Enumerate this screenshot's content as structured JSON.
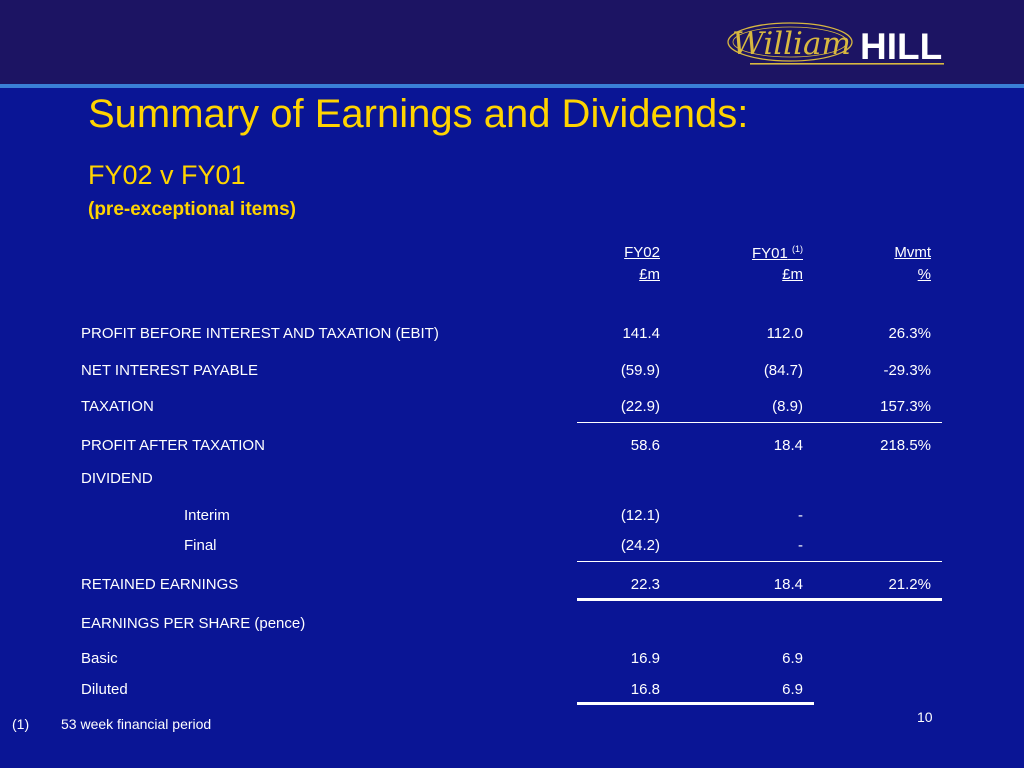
{
  "logo": {
    "script_text": "William",
    "block_text": "HILL"
  },
  "title": "Summary of Earnings and Dividends:",
  "subtitle": "FY02 v FY01",
  "note": "(pre-exceptional items)",
  "columns": [
    {
      "label": "FY02",
      "ref": "",
      "unit": "£m"
    },
    {
      "label": "FY01",
      "ref": "(1)",
      "unit": "£m"
    },
    {
      "label": "Mvmt",
      "ref": "",
      "unit": "%"
    }
  ],
  "rows": {
    "ebit": {
      "label": "PROFIT BEFORE INTEREST AND TAXATION (EBIT)",
      "fy02": "141.4",
      "fy01": "112.0",
      "mvmt": "26.3%"
    },
    "interest": {
      "label": "NET INTEREST PAYABLE",
      "fy02": "(59.9)",
      "fy01": "(84.7)",
      "mvmt": "-29.3%"
    },
    "tax": {
      "label": "TAXATION",
      "fy02": "(22.9)",
      "fy01": "(8.9)",
      "mvmt": "157.3%"
    },
    "pat": {
      "label": "PROFIT AFTER TAXATION",
      "fy02": "58.6",
      "fy01": "18.4",
      "mvmt": "218.5%"
    },
    "dividend": {
      "label": "DIVIDEND"
    },
    "interim": {
      "label": "Interim",
      "fy02": "(12.1)",
      "fy01": "-"
    },
    "final": {
      "label": "Final",
      "fy02": "(24.2)",
      "fy01": "-"
    },
    "retained": {
      "label": "RETAINED EARNINGS",
      "fy02": "22.3",
      "fy01": "18.4",
      "mvmt": "21.2%"
    },
    "eps": {
      "label": "EARNINGS PER SHARE (pence)"
    },
    "basic": {
      "label": "Basic",
      "fy02": "16.9",
      "fy01": "6.9"
    },
    "diluted": {
      "label": "Diluted",
      "fy02": "16.8",
      "fy01": "6.9"
    }
  },
  "footnote": {
    "marker": "(1)",
    "text": "53 week financial period"
  },
  "page_number": "10",
  "colors": {
    "background": "#0a1595",
    "header_band": "#1c1463",
    "accent_rule": "#3a7fd6",
    "title": "#ffd400",
    "text": "#ffffff",
    "logo_gold": "#d8b840"
  }
}
